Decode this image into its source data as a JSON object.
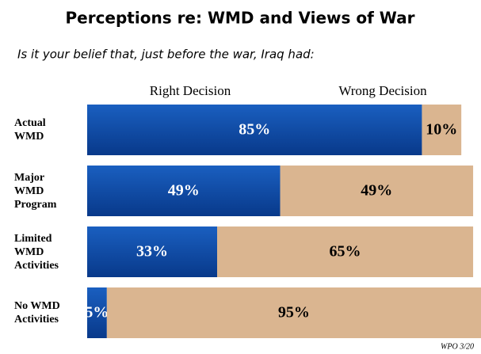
{
  "chart_data": {
    "type": "stacked-bar-horizontal",
    "title": "Perceptions re: WMD and Views of War",
    "subtitle": "Is it your belief that, just before the war, Iraq had:",
    "categories": [
      "Actual WMD",
      "Major WMD Program",
      "Limited WMD Activities",
      "No WMD Activities"
    ],
    "series": [
      {
        "name": "Right Decision",
        "color": "#0d4ba3",
        "values": [
          85,
          49,
          33,
          5
        ],
        "value_labels": [
          "85%",
          "49%",
          "33%",
          "5%"
        ]
      },
      {
        "name": "Wrong Decision",
        "color": "#dab590",
        "values": [
          10,
          49,
          65,
          95
        ],
        "value_labels": [
          "10%",
          "49%",
          "65%",
          "95%"
        ]
      }
    ],
    "xlim": [
      0,
      100
    ],
    "source": "WPO 3/20"
  }
}
